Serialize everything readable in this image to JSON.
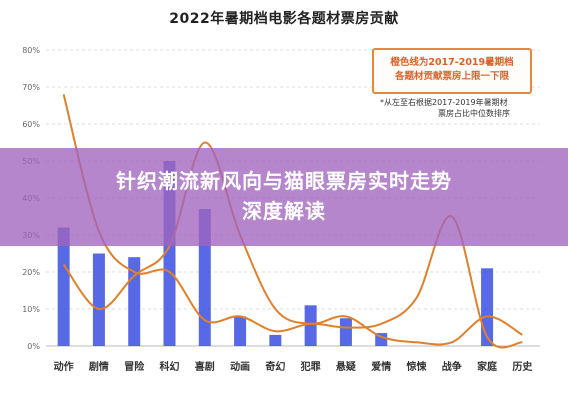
{
  "chart_data": {
    "type": "bar",
    "title": "2022年暑期档电影各题材票房贡献",
    "categories": [
      "动作",
      "剧情",
      "冒险",
      "科幻",
      "喜剧",
      "动画",
      "奇幻",
      "犯罪",
      "悬疑",
      "爱情",
      "惊悚",
      "战争",
      "家庭",
      "历史"
    ],
    "series": [
      {
        "values": [
          32,
          25,
          24,
          50,
          37,
          8,
          3,
          11,
          7.5,
          3.5,
          0,
          0,
          21,
          0
        ],
        "color": "#3a4fe0"
      },
      {
        "values": [
          68,
          31,
          20,
          20,
          7,
          8,
          4,
          6,
          5,
          6,
          13,
          35,
          2.5,
          1
        ],
        "color": "#e0802a"
      },
      {
        "values": [
          22,
          10,
          19,
          27,
          55,
          30,
          10,
          6,
          8,
          2.5,
          1,
          1,
          8,
          3
        ],
        "color": "#e0802a"
      }
    ],
    "ylim": [
      0,
      80
    ],
    "yticks": [
      0,
      10,
      20,
      30,
      40,
      50,
      60,
      70,
      80
    ],
    "ytick_labels": [
      "0%",
      "10%",
      "20%",
      "30%",
      "40%",
      "50%",
      "60%",
      "70%",
      "80%"
    ],
    "grid": true
  },
  "annotation": {
    "box_line1": "橙色线为2017-2019暑期档",
    "box_line2": "各题材贡献票房上限一下限",
    "note_line1": "*从左至右根据2017-2019年暑期材",
    "note_line2": "票房占比中位数排序"
  },
  "banner": {
    "line1": "针织潮流新风向与猫眼票房实时走势",
    "line2": "深度解读",
    "color": "#a064be"
  }
}
